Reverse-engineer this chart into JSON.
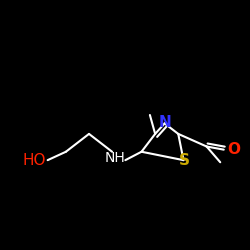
{
  "background_color": "#000000",
  "bond_color": "#ffffff",
  "figsize": [
    2.5,
    2.5
  ],
  "dpi": 100,
  "atom_colors": {
    "N": "#3333ff",
    "S": "#ccaa00",
    "O": "#ff2200",
    "C": "#ffffff"
  },
  "lw": 1.5,
  "label_fontsize": 11
}
